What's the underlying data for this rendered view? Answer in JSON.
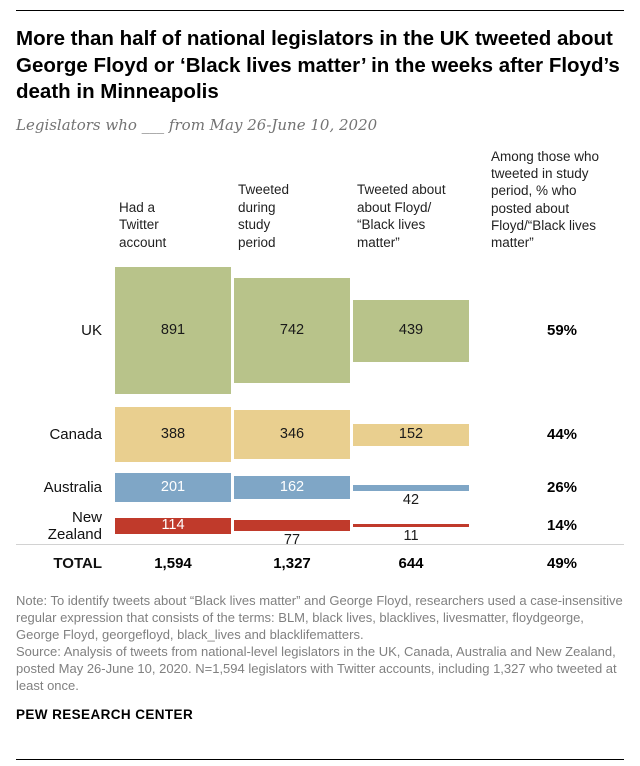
{
  "header": {
    "title": "More than half of national legislators in the UK tweeted about George Floyd or ‘Black lives matter’ in the weeks after Floyd’s death in Minneapolis",
    "subtitle": "Legislators who ___ from May 26-June 10, 2020"
  },
  "chart_data": {
    "type": "bar",
    "layout": "proportional-height column blocks per country row",
    "column_headers": [
      "Had a\nTwitter\naccount",
      "Tweeted\nduring\nstudy\nperiod",
      "Tweeted about\nabout Floyd/\n“Black lives\nmatter”"
    ],
    "right_column_header": "Among those who\ntweeted in study\nperiod, % who\nposted about\nFloyd/“Black lives\nmatter”",
    "rows": [
      {
        "country": "UK",
        "values": [
          891,
          742,
          439
        ],
        "pct": "59%",
        "color": "#b8c38a"
      },
      {
        "country": "Canada",
        "values": [
          388,
          346,
          152
        ],
        "pct": "44%",
        "color": "#e9cf8f"
      },
      {
        "country": "Australia",
        "values": [
          201,
          162,
          42
        ],
        "pct": "26%",
        "color": "#7fa6c6"
      },
      {
        "country": "New Zealand",
        "values": [
          114,
          77,
          11
        ],
        "pct": "14%",
        "color": "#c03a2b"
      }
    ],
    "total": {
      "label": "TOTAL",
      "values": [
        "1,594",
        "1,327",
        "644"
      ],
      "pct": "49%"
    }
  },
  "footer": {
    "note": "Note: To identify tweets about “Black lives matter” and George Floyd, researchers used a case-insensitive regular expression that consists of the terms: BLM, black lives, blacklives, livesmatter, floydgeorge, George Floyd, georgefloyd, black_lives and blacklifematters.",
    "source": "Source: Analysis of tweets from national-level legislators in the UK, Canada, Australia and New Zealand, posted May 26-June 10, 2020. N=1,594 legislators with Twitter accounts, including 1,327 who tweeted at least once.",
    "brand": "PEW RESEARCH CENTER"
  }
}
